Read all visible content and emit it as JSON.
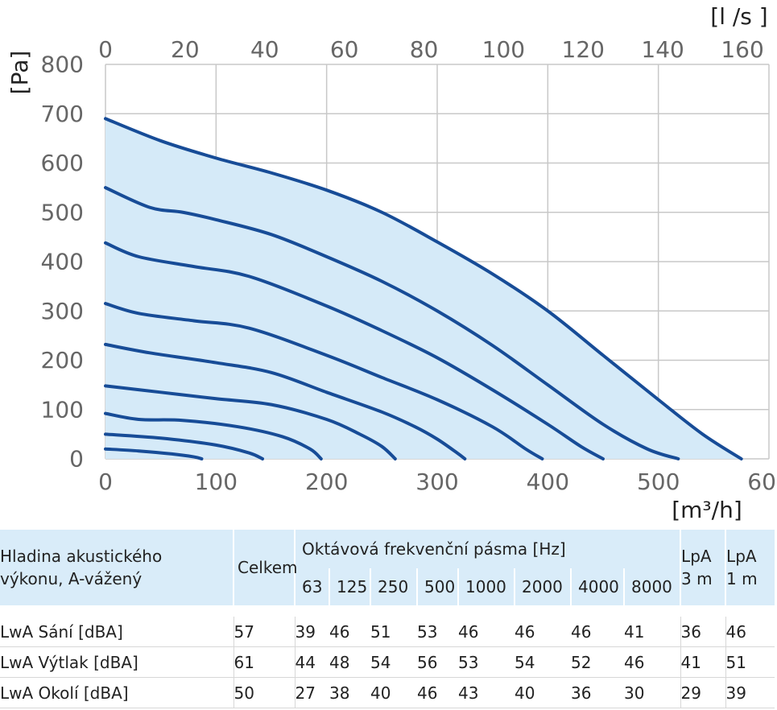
{
  "chart_data": {
    "type": "line",
    "x_unit": "[m³/h]",
    "y_unit": "[Pa]",
    "x2_unit": "[l /s ]",
    "xlim": [
      0,
      600
    ],
    "ylim": [
      0,
      800
    ],
    "x_ticks": [
      "0",
      "100",
      "200",
      "300",
      "400",
      "500",
      "600"
    ],
    "y_ticks": [
      "0",
      "100",
      "200",
      "300",
      "400",
      "500",
      "600",
      "700",
      "800"
    ],
    "x2_ticks": [
      "0",
      "20",
      "40",
      "60",
      "80",
      "100",
      "120",
      "140",
      "160"
    ],
    "x2_tick_values_m3h": [
      0,
      72,
      144,
      216,
      288,
      360,
      432,
      504,
      576
    ],
    "grid": true,
    "fill_color": "#d5eaf8",
    "line_color": "#174c97",
    "grid_color": "#c8c8c8",
    "series": [
      {
        "x": [
          0,
          50,
          100,
          150,
          200,
          250,
          300,
          350,
          400,
          450,
          500,
          540,
          575
        ],
        "y": [
          690,
          645,
          610,
          580,
          545,
          500,
          440,
          375,
          300,
          210,
          120,
          50,
          0
        ]
      },
      {
        "x": [
          0,
          40,
          70,
          100,
          150,
          200,
          250,
          300,
          350,
          400,
          450,
          490,
          518
        ],
        "y": [
          550,
          510,
          500,
          485,
          455,
          410,
          360,
          300,
          230,
          150,
          70,
          20,
          0
        ]
      },
      {
        "x": [
          0,
          30,
          80,
          130,
          200,
          250,
          300,
          350,
          400,
          430,
          450
        ],
        "y": [
          438,
          410,
          390,
          370,
          310,
          260,
          205,
          140,
          70,
          25,
          0
        ]
      },
      {
        "x": [
          0,
          30,
          80,
          130,
          200,
          250,
          300,
          350,
          380,
          395
        ],
        "y": [
          315,
          295,
          280,
          265,
          210,
          165,
          120,
          65,
          20,
          0
        ]
      },
      {
        "x": [
          0,
          40,
          100,
          150,
          200,
          250,
          280,
          300,
          318,
          325
        ],
        "y": [
          232,
          215,
          195,
          175,
          135,
          95,
          65,
          40,
          12,
          0
        ]
      },
      {
        "x": [
          0,
          50,
          100,
          150,
          200,
          230,
          250,
          262
        ],
        "y": [
          148,
          135,
          122,
          110,
          80,
          50,
          25,
          0
        ]
      },
      {
        "x": [
          0,
          30,
          70,
          120,
          160,
          185,
          195
        ],
        "y": [
          92,
          80,
          78,
          65,
          45,
          20,
          0
        ]
      },
      {
        "x": [
          0,
          50,
          100,
          130,
          142
        ],
        "y": [
          50,
          42,
          28,
          12,
          0
        ]
      },
      {
        "x": [
          0,
          30,
          60,
          80,
          87
        ],
        "y": [
          20,
          16,
          10,
          4,
          0
        ]
      }
    ]
  },
  "table": {
    "header": {
      "row_label": "Hladina akustického výkonu, A-vážený",
      "total": "Celkem",
      "bands_title": "Oktávová frekvenční pásma [Hz]",
      "bands": [
        "63",
        "125",
        "250",
        "500",
        "1000",
        "2000",
        "4000",
        "8000"
      ],
      "lpa3": "LpA 3 m",
      "lpa1": "LpA 1 m"
    },
    "rows": [
      {
        "label": "LwA Sání [dBA]",
        "total": "57",
        "bands": [
          "39",
          "46",
          "51",
          "53",
          "46",
          "46",
          "46",
          "41"
        ],
        "lpa3": "36",
        "lpa1": "46"
      },
      {
        "label": "LwA Výtlak [dBA]",
        "total": "61",
        "bands": [
          "44",
          "48",
          "54",
          "56",
          "53",
          "54",
          "52",
          "46"
        ],
        "lpa3": "41",
        "lpa1": "51"
      },
      {
        "label": "LwA Okolí [dBA]",
        "total": "50",
        "bands": [
          "27",
          "38",
          "40",
          "46",
          "43",
          "40",
          "36",
          "30"
        ],
        "lpa3": "29",
        "lpa1": "39"
      }
    ]
  }
}
